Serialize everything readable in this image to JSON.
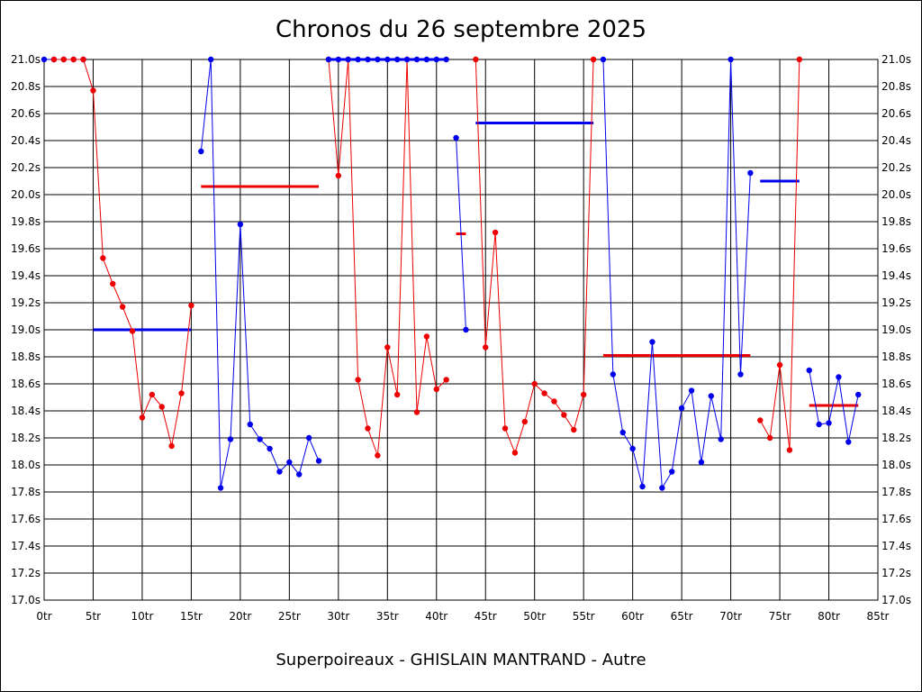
{
  "chart_data": {
    "type": "line",
    "title": "Chronos du 26 septembre 2025",
    "xlabel": "Superpoireaux - GHISLAIN MANTRAND - Autre",
    "ylabel": "",
    "xlim": [
      0,
      85
    ],
    "ylim": [
      17.0,
      21.0
    ],
    "x_ticks": [
      {
        "value": 0,
        "label": "0tr"
      },
      {
        "value": 5,
        "label": "5tr"
      },
      {
        "value": 10,
        "label": "10tr"
      },
      {
        "value": 15,
        "label": "15tr"
      },
      {
        "value": 20,
        "label": "20tr"
      },
      {
        "value": 25,
        "label": "25tr"
      },
      {
        "value": 30,
        "label": "30tr"
      },
      {
        "value": 35,
        "label": "35tr"
      },
      {
        "value": 40,
        "label": "40tr"
      },
      {
        "value": 45,
        "label": "45tr"
      },
      {
        "value": 50,
        "label": "50tr"
      },
      {
        "value": 55,
        "label": "55tr"
      },
      {
        "value": 60,
        "label": "60tr"
      },
      {
        "value": 65,
        "label": "65tr"
      },
      {
        "value": 70,
        "label": "70tr"
      },
      {
        "value": 75,
        "label": "75tr"
      },
      {
        "value": 80,
        "label": "80tr"
      },
      {
        "value": 85,
        "label": "85tr"
      }
    ],
    "y_ticks": [
      {
        "value": 17.0,
        "label": "17.0s"
      },
      {
        "value": 17.2,
        "label": "17.2s"
      },
      {
        "value": 17.4,
        "label": "17.4s"
      },
      {
        "value": 17.6,
        "label": "17.6s"
      },
      {
        "value": 17.8,
        "label": "17.8s"
      },
      {
        "value": 18.0,
        "label": "18.0s"
      },
      {
        "value": 18.2,
        "label": "18.2s"
      },
      {
        "value": 18.4,
        "label": "18.4s"
      },
      {
        "value": 18.6,
        "label": "18.6s"
      },
      {
        "value": 18.8,
        "label": "18.8s"
      },
      {
        "value": 19.0,
        "label": "19.0s"
      },
      {
        "value": 19.2,
        "label": "19.2s"
      },
      {
        "value": 19.4,
        "label": "19.4s"
      },
      {
        "value": 19.6,
        "label": "19.6s"
      },
      {
        "value": 19.8,
        "label": "19.8s"
      },
      {
        "value": 20.0,
        "label": "20.0s"
      },
      {
        "value": 20.2,
        "label": "20.2s"
      },
      {
        "value": 20.4,
        "label": "20.4s"
      },
      {
        "value": 20.6,
        "label": "20.6s"
      },
      {
        "value": 20.8,
        "label": "20.8s"
      },
      {
        "value": 21.0,
        "label": "21.0s"
      }
    ],
    "grid": true,
    "legend": "none",
    "colors": {
      "red": "#ee0000",
      "blue": "#0000ee",
      "grid": "#000000"
    },
    "segments": [
      {
        "color": "blue",
        "x": [
          0,
          1,
          2,
          3,
          4
        ],
        "y": [
          21.0,
          21.0,
          21.0,
          21.0,
          21.0
        ]
      },
      {
        "color": "red",
        "x": [
          1,
          2,
          3,
          4,
          5,
          6,
          7,
          8,
          9,
          10,
          11,
          12,
          13,
          14,
          15
        ],
        "y": [
          21.0,
          21.0,
          21.0,
          21.0,
          20.77,
          19.53,
          19.34,
          19.17,
          18.99,
          18.35,
          18.52,
          18.43,
          18.14,
          18.53,
          19.18
        ]
      },
      {
        "color": "blue",
        "x": [
          16,
          17,
          18,
          19,
          20,
          21,
          22,
          23,
          24,
          25,
          26,
          27,
          28
        ],
        "y": [
          20.32,
          21.0,
          17.83,
          18.19,
          19.78,
          18.3,
          18.19,
          18.12,
          17.95,
          18.02,
          17.93,
          18.2,
          18.03
        ]
      },
      {
        "color": "red",
        "x": [
          29,
          30,
          31,
          32,
          33,
          34,
          35,
          36,
          37,
          38,
          39,
          40,
          41
        ],
        "y": [
          21.0,
          20.14,
          21.0,
          18.63,
          18.27,
          18.07,
          18.87,
          18.52,
          21.0,
          18.39,
          18.95,
          18.56,
          18.63
        ]
      },
      {
        "color": "blue",
        "x": [
          29,
          30,
          31,
          32,
          33,
          34,
          35,
          36,
          37,
          38,
          39,
          40,
          41
        ],
        "y": [
          21.0,
          21.0,
          21.0,
          21.0,
          21.0,
          21.0,
          21.0,
          21.0,
          21.0,
          21.0,
          21.0,
          21.0,
          21.0
        ]
      },
      {
        "color": "blue",
        "x": [
          42,
          43
        ],
        "y": [
          20.42,
          19.0
        ]
      },
      {
        "color": "red",
        "x": [
          44,
          45,
          46,
          47,
          48,
          49,
          50,
          51,
          52,
          53,
          54,
          55,
          56
        ],
        "y": [
          21.0,
          18.87,
          19.72,
          18.27,
          18.09,
          18.32,
          18.6,
          18.53,
          18.47,
          18.37,
          18.26,
          18.52,
          21.0
        ]
      },
      {
        "color": "blue",
        "x": [
          57,
          58,
          59,
          60,
          61,
          62,
          63,
          64,
          65,
          66,
          67,
          68,
          69,
          70,
          71,
          72
        ],
        "y": [
          21.0,
          18.67,
          18.24,
          18.12,
          17.84,
          18.91,
          17.83,
          17.95,
          18.42,
          18.55,
          18.02,
          18.51,
          18.19,
          21.0,
          18.67,
          20.16
        ]
      },
      {
        "color": "red",
        "x": [
          73,
          74,
          75,
          76,
          77
        ],
        "y": [
          18.33,
          18.2,
          18.74,
          18.11,
          21.0
        ]
      },
      {
        "color": "blue",
        "x": [
          78,
          79,
          80,
          81,
          82,
          83
        ],
        "y": [
          18.7,
          18.3,
          18.31,
          18.65,
          18.17,
          18.52
        ]
      }
    ],
    "averages": [
      {
        "color": "blue",
        "x_start": 5,
        "x_end": 15,
        "y": 19.0
      },
      {
        "color": "red",
        "x_start": 16,
        "x_end": 28,
        "y": 20.06
      },
      {
        "color": "blue",
        "x_start": 29,
        "x_end": 41,
        "y": 21.0
      },
      {
        "color": "red",
        "x_start": 42,
        "x_end": 43,
        "y": 19.71
      },
      {
        "color": "blue",
        "x_start": 44,
        "x_end": 56,
        "y": 20.53
      },
      {
        "color": "red",
        "x_start": 57,
        "x_end": 72,
        "y": 18.81
      },
      {
        "color": "blue",
        "x_start": 73,
        "x_end": 77,
        "y": 20.1
      },
      {
        "color": "red",
        "x_start": 78,
        "x_end": 83,
        "y": 18.44
      }
    ]
  }
}
